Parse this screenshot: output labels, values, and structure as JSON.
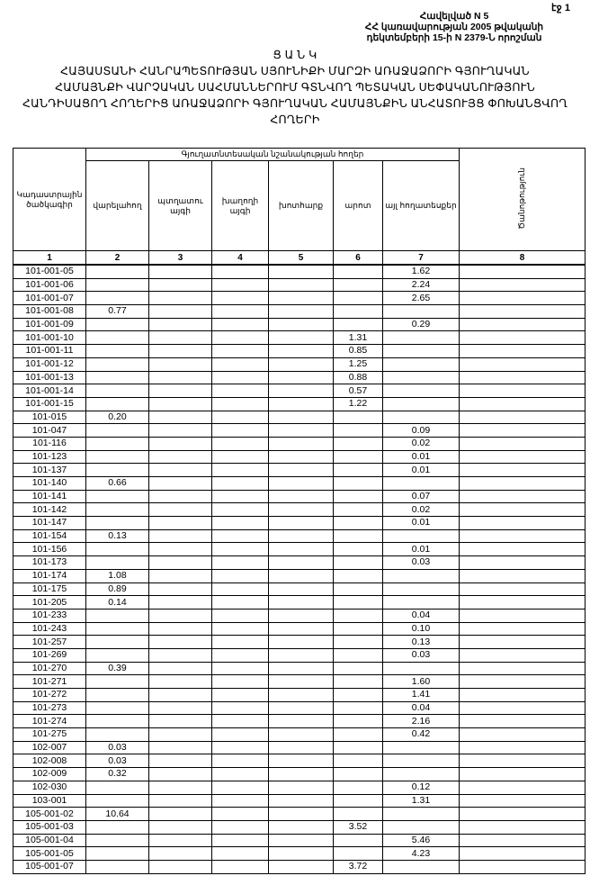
{
  "page_label": "էջ 1",
  "annex": {
    "line1": "Հավելված N 5",
    "line2": "ՀՀ կառավարության 2005 թվականի",
    "line3": "դեկտեմբերի 15-ի N 2379-Ն որոշման"
  },
  "title": {
    "heading": "Ց Ա Ն Կ",
    "line1": "ՀԱՅԱՍՏԱՆԻ ՀԱՆՐԱՊԵՏՈՒԹՅԱՆ ՍՅՈՒՆԻՔԻ ՄԱՐԶԻ ԱՌԱՋԱՁՈՐԻ ԳՅՈՒՂԱԿԱՆ",
    "line2": "ՀԱՄԱՅՆՔԻ ՎԱՐՉԱԿԱՆ ՍԱՀՄԱՆՆԵՐՈՒՄ ԳՏՆՎՈՂ ՊԵՏԱԿԱՆ ՍԵՓԱԿԱՆՈՒԹՅՈՒՆ",
    "line3": "ՀԱՆԴԻՍԱՑՈՂ ՀՈՂԵՐԻՑ ԱՌԱՋԱՁՈՐԻ ԳՅՈՒՂԱԿԱՆ ՀԱՄԱՅՆՔԻՆ ԱՆՀԱՏՈՒՅՑ ՓՈԽԱՆՑՎՈՂ",
    "line4": "ՀՈՂԵՐԻ"
  },
  "table": {
    "col_code": "Կադաստրային ծածկագիր",
    "group_header": "Գյուղատնտեսական նշանակության հողեր",
    "sub_headers": [
      "վարելահող",
      "պտղատու այգի",
      "խաղողի այգի",
      "խոտհարք",
      "արոտ",
      "այլ հողատեսքեր"
    ],
    "col_note": "Ծանոթություն",
    "column_numbers": [
      "1",
      "2",
      "3",
      "4",
      "5",
      "6",
      "7",
      "8"
    ],
    "rows": [
      [
        "101-001-05",
        "",
        "",
        "",
        "",
        "",
        "1.62",
        ""
      ],
      [
        "101-001-06",
        "",
        "",
        "",
        "",
        "",
        "2.24",
        ""
      ],
      [
        "101-001-07",
        "",
        "",
        "",
        "",
        "",
        "2.65",
        ""
      ],
      [
        "101-001-08",
        "0.77",
        "",
        "",
        "",
        "",
        "",
        ""
      ],
      [
        "101-001-09",
        "",
        "",
        "",
        "",
        "",
        "0.29",
        ""
      ],
      [
        "101-001-10",
        "",
        "",
        "",
        "",
        "1.31",
        "",
        ""
      ],
      [
        "101-001-11",
        "",
        "",
        "",
        "",
        "0.85",
        "",
        ""
      ],
      [
        "101-001-12",
        "",
        "",
        "",
        "",
        "1.25",
        "",
        ""
      ],
      [
        "101-001-13",
        "",
        "",
        "",
        "",
        "0.88",
        "",
        ""
      ],
      [
        "101-001-14",
        "",
        "",
        "",
        "",
        "0.57",
        "",
        ""
      ],
      [
        "101-001-15",
        "",
        "",
        "",
        "",
        "1.22",
        "",
        ""
      ],
      [
        "101-015",
        "0.20",
        "",
        "",
        "",
        "",
        "",
        ""
      ],
      [
        "101-047",
        "",
        "",
        "",
        "",
        "",
        "0.09",
        ""
      ],
      [
        "101-116",
        "",
        "",
        "",
        "",
        "",
        "0.02",
        ""
      ],
      [
        "101-123",
        "",
        "",
        "",
        "",
        "",
        "0.01",
        ""
      ],
      [
        "101-137",
        "",
        "",
        "",
        "",
        "",
        "0.01",
        ""
      ],
      [
        "101-140",
        "0.66",
        "",
        "",
        "",
        "",
        "",
        ""
      ],
      [
        "101-141",
        "",
        "",
        "",
        "",
        "",
        "0.07",
        ""
      ],
      [
        "101-142",
        "",
        "",
        "",
        "",
        "",
        "0.02",
        ""
      ],
      [
        "101-147",
        "",
        "",
        "",
        "",
        "",
        "0.01",
        ""
      ],
      [
        "101-154",
        "0.13",
        "",
        "",
        "",
        "",
        "",
        ""
      ],
      [
        "101-156",
        "",
        "",
        "",
        "",
        "",
        "0.01",
        ""
      ],
      [
        "101-173",
        "",
        "",
        "",
        "",
        "",
        "0.03",
        ""
      ],
      [
        "101-174",
        "1.08",
        "",
        "",
        "",
        "",
        "",
        ""
      ],
      [
        "101-175",
        "0.89",
        "",
        "",
        "",
        "",
        "",
        ""
      ],
      [
        "101-205",
        "0.14",
        "",
        "",
        "",
        "",
        "",
        ""
      ],
      [
        "101-233",
        "",
        "",
        "",
        "",
        "",
        "0.04",
        ""
      ],
      [
        "101-243",
        "",
        "",
        "",
        "",
        "",
        "0.10",
        ""
      ],
      [
        "101-257",
        "",
        "",
        "",
        "",
        "",
        "0.13",
        ""
      ],
      [
        "101-269",
        "",
        "",
        "",
        "",
        "",
        "0.03",
        ""
      ],
      [
        "101-270",
        "0.39",
        "",
        "",
        "",
        "",
        "",
        ""
      ],
      [
        "101-271",
        "",
        "",
        "",
        "",
        "",
        "1.60",
        ""
      ],
      [
        "101-272",
        "",
        "",
        "",
        "",
        "",
        "1.41",
        ""
      ],
      [
        "101-273",
        "",
        "",
        "",
        "",
        "",
        "0.04",
        ""
      ],
      [
        "101-274",
        "",
        "",
        "",
        "",
        "",
        "2.16",
        ""
      ],
      [
        "101-275",
        "",
        "",
        "",
        "",
        "",
        "0.42",
        ""
      ],
      [
        "102-007",
        "0.03",
        "",
        "",
        "",
        "",
        "",
        ""
      ],
      [
        "102-008",
        "0.03",
        "",
        "",
        "",
        "",
        "",
        ""
      ],
      [
        "102-009",
        "0.32",
        "",
        "",
        "",
        "",
        "",
        ""
      ],
      [
        "102-030",
        "",
        "",
        "",
        "",
        "",
        "0.12",
        ""
      ],
      [
        "103-001",
        "",
        "",
        "",
        "",
        "",
        "1.31",
        ""
      ],
      [
        "105-001-02",
        "10.64",
        "",
        "",
        "",
        "",
        "",
        ""
      ],
      [
        "105-001-03",
        "",
        "",
        "",
        "",
        "3.52",
        "",
        ""
      ],
      [
        "105-001-04",
        "",
        "",
        "",
        "",
        "",
        "5.46",
        ""
      ],
      [
        "105-001-05",
        "",
        "",
        "",
        "",
        "",
        "4.23",
        ""
      ],
      [
        "105-001-07",
        "",
        "",
        "",
        "",
        "3.72",
        "",
        ""
      ]
    ]
  }
}
